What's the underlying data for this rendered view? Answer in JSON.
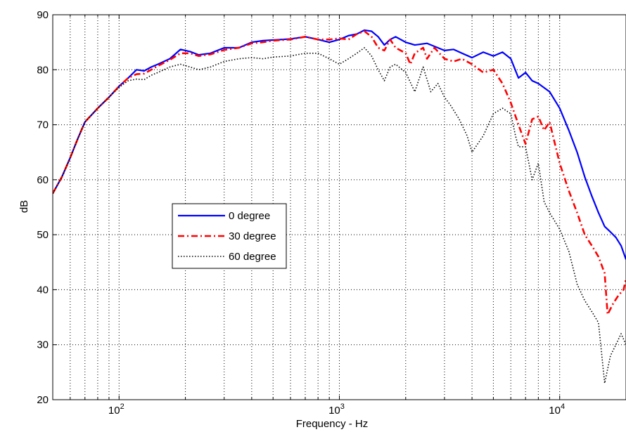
{
  "chart_data": {
    "type": "line",
    "xlabel": "Frequency - Hz",
    "ylabel": "dB",
    "xscale": "log",
    "xlim": [
      50,
      20000
    ],
    "ylim": [
      20,
      90
    ],
    "grid": true,
    "legend_position": "center-left",
    "y_ticks": [
      {
        "value": 20,
        "label": "20"
      },
      {
        "value": 30,
        "label": "30"
      },
      {
        "value": 40,
        "label": "40"
      },
      {
        "value": 50,
        "label": "50"
      },
      {
        "value": 60,
        "label": "60"
      },
      {
        "value": 70,
        "label": "70"
      },
      {
        "value": 80,
        "label": "80"
      },
      {
        "value": 90,
        "label": "90"
      }
    ],
    "x_ticks": [
      {
        "value": 100,
        "base": "10",
        "exp": "2"
      },
      {
        "value": 1000,
        "base": "10",
        "exp": "3"
      },
      {
        "value": 10000,
        "base": "10",
        "exp": "4"
      }
    ],
    "series": [
      {
        "name": "0 degree",
        "color": "#0000ff",
        "dash": "solid",
        "points": [
          [
            50,
            57.5
          ],
          [
            55,
            60.5
          ],
          [
            60,
            64
          ],
          [
            65,
            67.5
          ],
          [
            70,
            70.5
          ],
          [
            80,
            73
          ],
          [
            90,
            75
          ],
          [
            100,
            77
          ],
          [
            110,
            78.5
          ],
          [
            120,
            80
          ],
          [
            130,
            79.8
          ],
          [
            140,
            80.5
          ],
          [
            150,
            81
          ],
          [
            170,
            82
          ],
          [
            190,
            83.7
          ],
          [
            210,
            83.3
          ],
          [
            230,
            82.7
          ],
          [
            260,
            83
          ],
          [
            300,
            84
          ],
          [
            350,
            84
          ],
          [
            400,
            85
          ],
          [
            450,
            85.3
          ],
          [
            500,
            85.4
          ],
          [
            600,
            85.6
          ],
          [
            700,
            86
          ],
          [
            800,
            85.5
          ],
          [
            900,
            85
          ],
          [
            1000,
            85.5
          ],
          [
            1100,
            86.2
          ],
          [
            1200,
            86.5
          ],
          [
            1300,
            87.2
          ],
          [
            1400,
            87
          ],
          [
            1500,
            86
          ],
          [
            1600,
            84.5
          ],
          [
            1700,
            85.5
          ],
          [
            1800,
            86
          ],
          [
            2000,
            85
          ],
          [
            2200,
            84.5
          ],
          [
            2500,
            84.8
          ],
          [
            2800,
            84
          ],
          [
            3000,
            83.5
          ],
          [
            3300,
            83.7
          ],
          [
            3600,
            83
          ],
          [
            4000,
            82.2
          ],
          [
            4500,
            83.2
          ],
          [
            5000,
            82.5
          ],
          [
            5500,
            83.2
          ],
          [
            6000,
            82
          ],
          [
            6500,
            78.5
          ],
          [
            7000,
            79.5
          ],
          [
            7500,
            78
          ],
          [
            8000,
            77.5
          ],
          [
            9000,
            76
          ],
          [
            10000,
            73
          ],
          [
            11000,
            69
          ],
          [
            12000,
            65
          ],
          [
            13000,
            60.5
          ],
          [
            14000,
            57
          ],
          [
            15000,
            54
          ],
          [
            16000,
            51.5
          ],
          [
            17000,
            50.5
          ],
          [
            18000,
            49.5
          ],
          [
            19000,
            48
          ],
          [
            20000,
            45.5
          ]
        ]
      },
      {
        "name": "30 degree",
        "color": "#ff0000",
        "dash": "dashdot",
        "points": [
          [
            50,
            57.5
          ],
          [
            55,
            60.5
          ],
          [
            60,
            64
          ],
          [
            65,
            67.5
          ],
          [
            70,
            70.5
          ],
          [
            80,
            73
          ],
          [
            90,
            75
          ],
          [
            100,
            77
          ],
          [
            110,
            78.5
          ],
          [
            120,
            79.2
          ],
          [
            130,
            79.3
          ],
          [
            140,
            80
          ],
          [
            150,
            80.7
          ],
          [
            170,
            81.8
          ],
          [
            190,
            83
          ],
          [
            210,
            83
          ],
          [
            230,
            82.5
          ],
          [
            260,
            82.8
          ],
          [
            300,
            83.6
          ],
          [
            350,
            84
          ],
          [
            400,
            84.8
          ],
          [
            450,
            85
          ],
          [
            500,
            85.3
          ],
          [
            600,
            85.5
          ],
          [
            700,
            86
          ],
          [
            800,
            85.5
          ],
          [
            900,
            85.5
          ],
          [
            1000,
            85.7
          ],
          [
            1100,
            85.5
          ],
          [
            1200,
            86.5
          ],
          [
            1300,
            87
          ],
          [
            1400,
            86
          ],
          [
            1500,
            84
          ],
          [
            1600,
            83.5
          ],
          [
            1700,
            85.5
          ],
          [
            1800,
            84
          ],
          [
            2000,
            83
          ],
          [
            2100,
            81
          ],
          [
            2200,
            83
          ],
          [
            2400,
            84
          ],
          [
            2500,
            82
          ],
          [
            2700,
            84
          ],
          [
            3000,
            82
          ],
          [
            3300,
            81.5
          ],
          [
            3600,
            82
          ],
          [
            4000,
            81
          ],
          [
            4500,
            79.5
          ],
          [
            5000,
            80
          ],
          [
            5500,
            77.5
          ],
          [
            6000,
            74
          ],
          [
            6500,
            70
          ],
          [
            7000,
            66.5
          ],
          [
            7500,
            71
          ],
          [
            8000,
            71.5
          ],
          [
            8500,
            69
          ],
          [
            9000,
            70.5
          ],
          [
            10000,
            63
          ],
          [
            11000,
            58
          ],
          [
            12000,
            54
          ],
          [
            13000,
            50
          ],
          [
            14000,
            48
          ],
          [
            15000,
            46
          ],
          [
            16000,
            43
          ],
          [
            16500,
            35.5
          ],
          [
            17500,
            37.5
          ],
          [
            18500,
            39
          ],
          [
            19500,
            40
          ],
          [
            20000,
            42
          ]
        ]
      },
      {
        "name": "60 degree",
        "color": "#000000",
        "dash": "dotted",
        "points": [
          [
            50,
            57.5
          ],
          [
            55,
            60.5
          ],
          [
            60,
            64
          ],
          [
            65,
            67.5
          ],
          [
            70,
            70.5
          ],
          [
            80,
            73
          ],
          [
            90,
            75
          ],
          [
            100,
            76.8
          ],
          [
            110,
            78
          ],
          [
            120,
            78.3
          ],
          [
            130,
            78.2
          ],
          [
            140,
            79
          ],
          [
            150,
            79.5
          ],
          [
            170,
            80.5
          ],
          [
            190,
            81
          ],
          [
            210,
            80.5
          ],
          [
            230,
            80
          ],
          [
            260,
            80.5
          ],
          [
            300,
            81.5
          ],
          [
            350,
            82
          ],
          [
            400,
            82.2
          ],
          [
            450,
            82
          ],
          [
            500,
            82.3
          ],
          [
            600,
            82.5
          ],
          [
            700,
            83
          ],
          [
            800,
            83
          ],
          [
            900,
            82
          ],
          [
            1000,
            81
          ],
          [
            1100,
            82
          ],
          [
            1200,
            83
          ],
          [
            1300,
            84
          ],
          [
            1400,
            82.5
          ],
          [
            1500,
            80
          ],
          [
            1600,
            78
          ],
          [
            1700,
            80.5
          ],
          [
            1800,
            81
          ],
          [
            2000,
            79.5
          ],
          [
            2200,
            76
          ],
          [
            2400,
            80.5
          ],
          [
            2600,
            76
          ],
          [
            2800,
            77.5
          ],
          [
            3000,
            75
          ],
          [
            3200,
            73.5
          ],
          [
            3500,
            71
          ],
          [
            3800,
            68
          ],
          [
            4000,
            65
          ],
          [
            4500,
            68
          ],
          [
            5000,
            72
          ],
          [
            5500,
            73
          ],
          [
            6000,
            72
          ],
          [
            6300,
            68
          ],
          [
            6500,
            66
          ],
          [
            7000,
            66
          ],
          [
            7500,
            60
          ],
          [
            8000,
            63
          ],
          [
            8500,
            56
          ],
          [
            9000,
            54
          ],
          [
            10000,
            51
          ],
          [
            11000,
            47
          ],
          [
            12000,
            41
          ],
          [
            13000,
            38
          ],
          [
            14000,
            36
          ],
          [
            15000,
            34
          ],
          [
            16000,
            23
          ],
          [
            17000,
            28
          ],
          [
            18000,
            30
          ],
          [
            19000,
            32
          ],
          [
            20000,
            30
          ]
        ]
      }
    ]
  }
}
